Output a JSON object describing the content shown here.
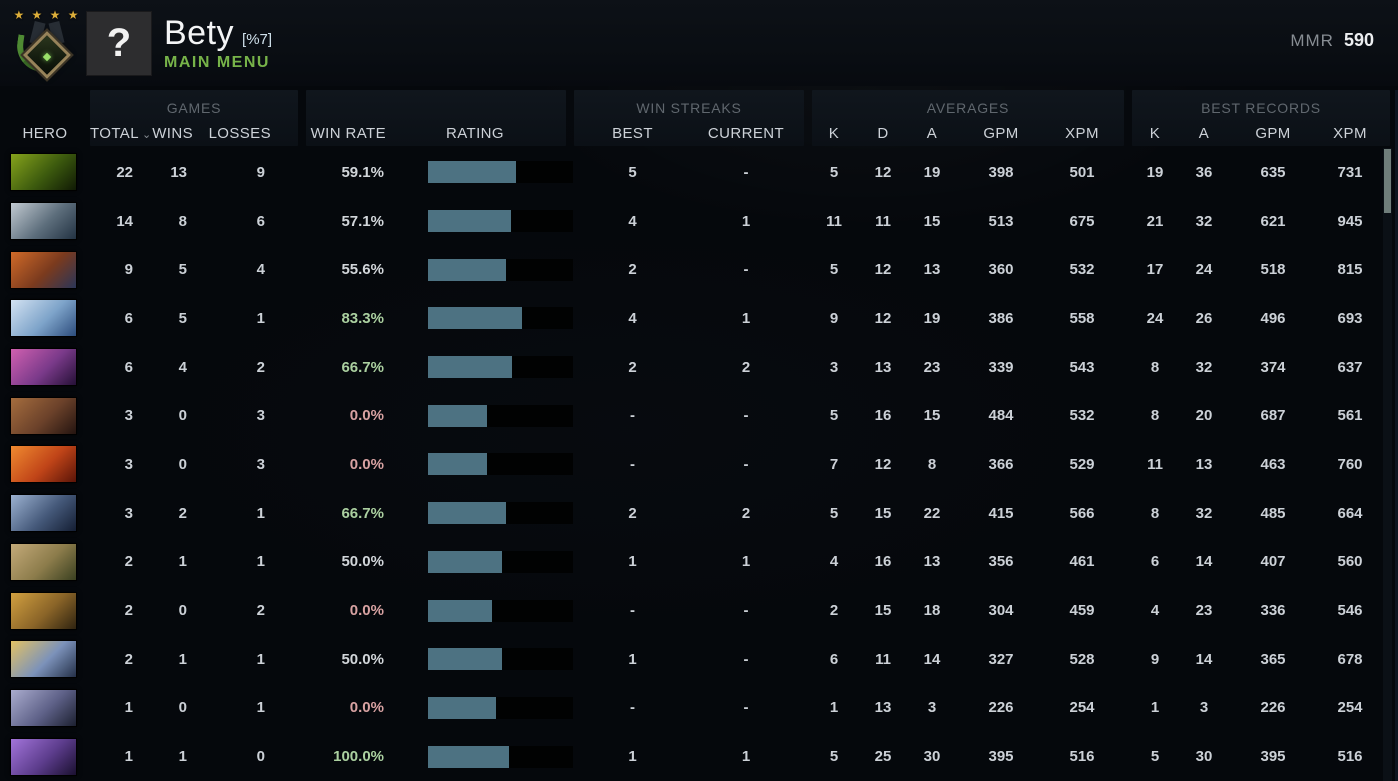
{
  "top_bar": {
    "player_name": "Bety",
    "player_tag": "[%7]",
    "nav_label": "MAIN MENU",
    "mmr_label": "MMR",
    "mmr_value": "590",
    "avatar_glyph": "?",
    "rank_stars": "★ ★ ★ ★",
    "accent_green": "#77b349"
  },
  "table": {
    "groups": {
      "games": "GAMES",
      "win_streaks": "WIN STREAKS",
      "averages": "AVERAGES",
      "best_records": "BEST RECORDS"
    },
    "columns": {
      "hero": "HERO",
      "total": "TOTAL",
      "sort_caret": "⌄",
      "wins": "WINS",
      "losses": "LOSSES",
      "win_rate": "WIN RATE",
      "rating": "RATING",
      "best": "BEST",
      "current": "CURRENT",
      "k": "K",
      "d": "D",
      "a": "A",
      "gpm": "GPM",
      "xpm": "XPM",
      "rec_k": "K",
      "rec_a": "A",
      "rec_gpm": "GPM",
      "rec_xpm": "XPM"
    },
    "colors": {
      "rating_fill": "#4d7282",
      "rating_empty": "#010202",
      "win_rate_positive": "#abd0a0",
      "win_rate_negative": "#d8a2a2",
      "win_rate_neutral": "#d2d6da"
    },
    "rows": [
      {
        "hero": "venomancer",
        "portrait": [
          "#86a31c",
          "#3c5a0e",
          "#101a05"
        ],
        "total": "22",
        "wins": "13",
        "losses": "9",
        "win_rate": "59.1%",
        "tone": "neutral",
        "rating_pct": 61,
        "best": "5",
        "current": "-",
        "k": "5",
        "d": "12",
        "a": "19",
        "gpm": "398",
        "xpm": "501",
        "rec_k": "19",
        "rec_a": "36",
        "rec_gpm": "635",
        "rec_xpm": "731"
      },
      {
        "hero": "sniper",
        "portrait": [
          "#c2cad1",
          "#5d6e7c",
          "#223242"
        ],
        "total": "14",
        "wins": "8",
        "losses": "6",
        "win_rate": "57.1%",
        "tone": "neutral",
        "rating_pct": 57,
        "best": "4",
        "current": "1",
        "k": "11",
        "d": "11",
        "a": "15",
        "gpm": "513",
        "xpm": "675",
        "rec_k": "21",
        "rec_a": "32",
        "rec_gpm": "621",
        "rec_xpm": "945"
      },
      {
        "hero": "batrider",
        "portrait": [
          "#d06a28",
          "#7a3a1e",
          "#2a3558"
        ],
        "total": "9",
        "wins": "5",
        "losses": "4",
        "win_rate": "55.6%",
        "tone": "neutral",
        "rating_pct": 54,
        "best": "2",
        "current": "-",
        "k": "5",
        "d": "12",
        "a": "13",
        "gpm": "360",
        "xpm": "532",
        "rec_k": "17",
        "rec_a": "24",
        "rec_gpm": "518",
        "rec_xpm": "815"
      },
      {
        "hero": "crystal-maiden",
        "portrait": [
          "#d3e2f2",
          "#7da3c9",
          "#2c4c7c"
        ],
        "total": "6",
        "wins": "5",
        "losses": "1",
        "win_rate": "83.3%",
        "tone": "pos",
        "rating_pct": 65,
        "best": "4",
        "current": "1",
        "k": "9",
        "d": "12",
        "a": "19",
        "gpm": "386",
        "xpm": "558",
        "rec_k": "24",
        "rec_a": "26",
        "rec_gpm": "496",
        "rec_xpm": "693"
      },
      {
        "hero": "dazzle",
        "portrait": [
          "#d060b0",
          "#7a3a8a",
          "#251036"
        ],
        "total": "6",
        "wins": "4",
        "losses": "2",
        "win_rate": "66.7%",
        "tone": "pos",
        "rating_pct": 58,
        "best": "2",
        "current": "2",
        "k": "3",
        "d": "13",
        "a": "23",
        "gpm": "339",
        "xpm": "543",
        "rec_k": "8",
        "rec_a": "32",
        "rec_gpm": "374",
        "rec_xpm": "637"
      },
      {
        "hero": "earthshaker",
        "portrait": [
          "#a56d3e",
          "#6b412a",
          "#241410"
        ],
        "total": "3",
        "wins": "0",
        "losses": "3",
        "win_rate": "0.0%",
        "tone": "neg",
        "rating_pct": 41,
        "best": "-",
        "current": "-",
        "k": "5",
        "d": "16",
        "a": "15",
        "gpm": "484",
        "xpm": "532",
        "rec_k": "8",
        "rec_a": "20",
        "rec_gpm": "687",
        "rec_xpm": "561"
      },
      {
        "hero": "lina",
        "portrait": [
          "#f08a30",
          "#c04418",
          "#5a1408"
        ],
        "total": "3",
        "wins": "0",
        "losses": "3",
        "win_rate": "0.0%",
        "tone": "neg",
        "rating_pct": 41,
        "best": "-",
        "current": "-",
        "k": "7",
        "d": "12",
        "a": "8",
        "gpm": "366",
        "xpm": "529",
        "rec_k": "11",
        "rec_a": "13",
        "rec_gpm": "463",
        "rec_xpm": "760"
      },
      {
        "hero": "vengeful-spirit",
        "portrait": [
          "#9cb2d1",
          "#45597a",
          "#141e33"
        ],
        "total": "3",
        "wins": "2",
        "losses": "1",
        "win_rate": "66.7%",
        "tone": "pos",
        "rating_pct": 54,
        "best": "2",
        "current": "2",
        "k": "5",
        "d": "15",
        "a": "22",
        "gpm": "415",
        "xpm": "566",
        "rec_k": "8",
        "rec_a": "32",
        "rec_gpm": "485",
        "rec_xpm": "664"
      },
      {
        "hero": "pudge",
        "portrait": [
          "#c4aa79",
          "#8c7c4b",
          "#3a4020"
        ],
        "total": "2",
        "wins": "1",
        "losses": "1",
        "win_rate": "50.0%",
        "tone": "neutral",
        "rating_pct": 51,
        "best": "1",
        "current": "1",
        "k": "4",
        "d": "16",
        "a": "13",
        "gpm": "356",
        "xpm": "461",
        "rec_k": "6",
        "rec_a": "14",
        "rec_gpm": "407",
        "rec_xpm": "560"
      },
      {
        "hero": "bounty-hunter",
        "portrait": [
          "#d2a040",
          "#8a6428",
          "#2f2310"
        ],
        "total": "2",
        "wins": "0",
        "losses": "2",
        "win_rate": "0.0%",
        "tone": "neg",
        "rating_pct": 44,
        "best": "-",
        "current": "-",
        "k": "2",
        "d": "15",
        "a": "18",
        "gpm": "304",
        "xpm": "459",
        "rec_k": "4",
        "rec_a": "23",
        "rec_gpm": "336",
        "rec_xpm": "546"
      },
      {
        "hero": "skywrath-mage",
        "portrait": [
          "#e2c264",
          "#7c92ba",
          "#243048"
        ],
        "total": "2",
        "wins": "1",
        "losses": "1",
        "win_rate": "50.0%",
        "tone": "neutral",
        "rating_pct": 51,
        "best": "1",
        "current": "-",
        "k": "6",
        "d": "11",
        "a": "14",
        "gpm": "327",
        "xpm": "528",
        "rec_k": "9",
        "rec_a": "14",
        "rec_gpm": "365",
        "rec_xpm": "678"
      },
      {
        "hero": "drow-ranger",
        "portrait": [
          "#aaacce",
          "#5e6188",
          "#1c2030"
        ],
        "total": "1",
        "wins": "0",
        "losses": "1",
        "win_rate": "0.0%",
        "tone": "neg",
        "rating_pct": 47,
        "best": "-",
        "current": "-",
        "k": "1",
        "d": "13",
        "a": "3",
        "gpm": "226",
        "xpm": "254",
        "rec_k": "1",
        "rec_a": "3",
        "rec_gpm": "226",
        "rec_xpm": "254"
      },
      {
        "hero": "spectre",
        "portrait": [
          "#a274da",
          "#5c3c8c",
          "#1a1030"
        ],
        "total": "1",
        "wins": "1",
        "losses": "0",
        "win_rate": "100.0%",
        "tone": "pos",
        "rating_pct": 56,
        "best": "1",
        "current": "1",
        "k": "5",
        "d": "25",
        "a": "30",
        "gpm": "395",
        "xpm": "516",
        "rec_k": "5",
        "rec_a": "30",
        "rec_gpm": "395",
        "rec_xpm": "516"
      }
    ]
  }
}
